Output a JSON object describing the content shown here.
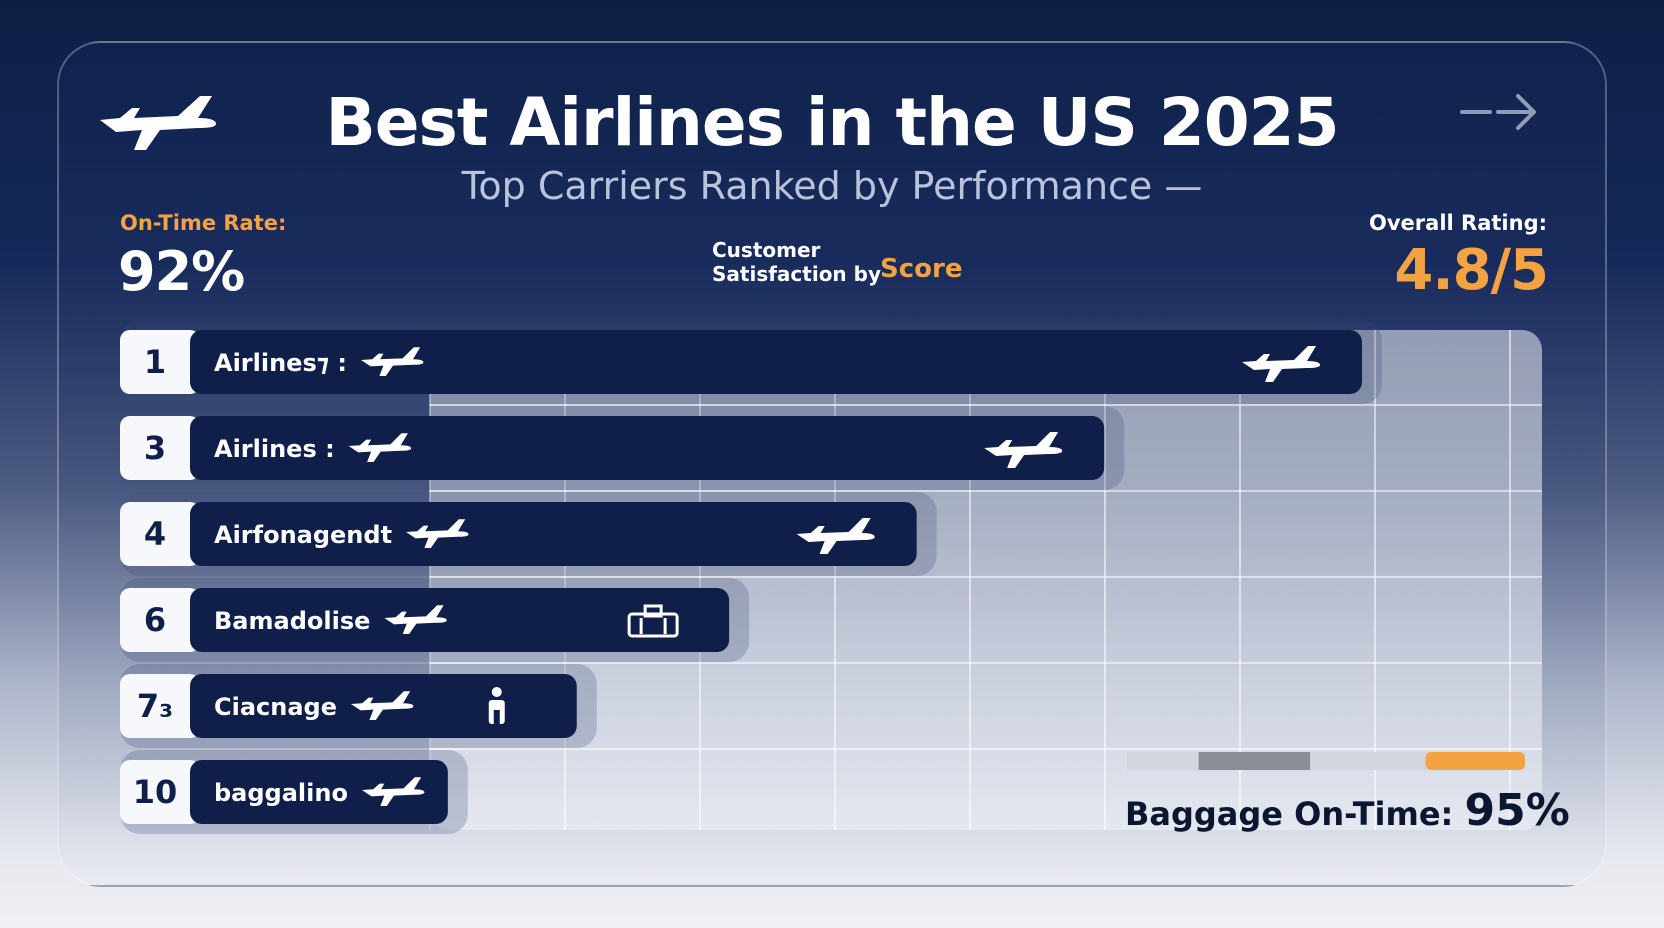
{
  "header": {
    "title": "Best Airlines in the US 2025",
    "subtitle": "Top Carriers Ranked by Performance —"
  },
  "stats": {
    "on_time_label": "On-Time Rate:",
    "on_time_value": "92%",
    "customer_line1": "Customer",
    "customer_line2": "Satisfaction by",
    "customer_score": "Score",
    "overall_label": "Overall Rating:",
    "overall_value": "4.8/5"
  },
  "baggage": {
    "label": "Baggage On-Time:",
    "value": "95%",
    "bar_fill_fraction": 0.75
  },
  "icons": {
    "logo": "airplane-icon",
    "arrow": "arrow-right-icon"
  },
  "colors": {
    "navy": "#0f1f4a",
    "accent": "#f5a243",
    "white": "#ffffff"
  },
  "chart_data": {
    "type": "bar",
    "orientation": "horizontal",
    "categories": [
      "Airlines⁊ :",
      "Airlines :",
      "Airfonagendt",
      "Bamadolise",
      "Ciacnage",
      "baggalino"
    ],
    "ranks": [
      "1",
      "3",
      "4",
      "6",
      "7₃",
      "10"
    ],
    "values": [
      100,
      78,
      62,
      46,
      33,
      22
    ],
    "xlim": [
      0,
      100
    ],
    "grid": true
  }
}
